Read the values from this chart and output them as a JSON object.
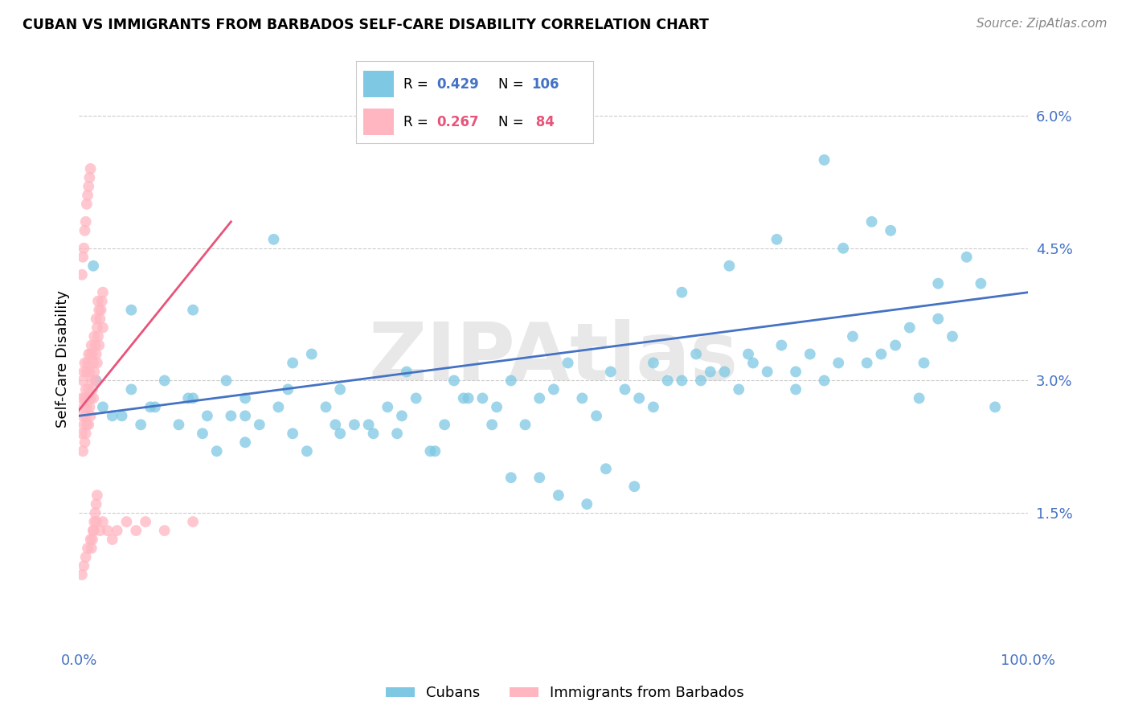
{
  "title": "CUBAN VS IMMIGRANTS FROM BARBADOS SELF-CARE DISABILITY CORRELATION CHART",
  "source": "Source: ZipAtlas.com",
  "ylabel": "Self-Care Disability",
  "xlim": [
    0.0,
    1.0
  ],
  "ylim": [
    0.0,
    0.065
  ],
  "color_cubans": "#7EC8E3",
  "color_barbados": "#FFB6C1",
  "color_cubans_line": "#4472C4",
  "color_barbados_line": "#E8547A",
  "color_text_blue": "#4472C4",
  "color_text_pink": "#E8547A",
  "watermark": "ZIPAtlas",
  "cubans_x": [
    0.018,
    0.045,
    0.055,
    0.075,
    0.09,
    0.105,
    0.115,
    0.13,
    0.145,
    0.16,
    0.175,
    0.19,
    0.21,
    0.225,
    0.24,
    0.26,
    0.275,
    0.29,
    0.31,
    0.325,
    0.34,
    0.355,
    0.37,
    0.385,
    0.395,
    0.41,
    0.425,
    0.44,
    0.455,
    0.47,
    0.485,
    0.5,
    0.515,
    0.53,
    0.545,
    0.56,
    0.575,
    0.59,
    0.605,
    0.62,
    0.635,
    0.65,
    0.665,
    0.68,
    0.695,
    0.71,
    0.725,
    0.74,
    0.755,
    0.77,
    0.785,
    0.8,
    0.815,
    0.83,
    0.845,
    0.86,
    0.875,
    0.89,
    0.905,
    0.92,
    0.035,
    0.065,
    0.12,
    0.155,
    0.205,
    0.245,
    0.305,
    0.345,
    0.405,
    0.455,
    0.505,
    0.555,
    0.605,
    0.655,
    0.705,
    0.755,
    0.805,
    0.855,
    0.905,
    0.025,
    0.08,
    0.135,
    0.175,
    0.225,
    0.275,
    0.335,
    0.375,
    0.435,
    0.485,
    0.535,
    0.585,
    0.635,
    0.685,
    0.735,
    0.785,
    0.835,
    0.885,
    0.935,
    0.965,
    0.95,
    0.015,
    0.055,
    0.12,
    0.175,
    0.22,
    0.27
  ],
  "cubans_y": [
    0.03,
    0.026,
    0.038,
    0.027,
    0.03,
    0.025,
    0.028,
    0.024,
    0.022,
    0.026,
    0.028,
    0.025,
    0.027,
    0.024,
    0.022,
    0.027,
    0.029,
    0.025,
    0.024,
    0.027,
    0.026,
    0.028,
    0.022,
    0.025,
    0.03,
    0.028,
    0.028,
    0.027,
    0.03,
    0.025,
    0.028,
    0.029,
    0.032,
    0.028,
    0.026,
    0.031,
    0.029,
    0.028,
    0.032,
    0.03,
    0.03,
    0.033,
    0.031,
    0.031,
    0.029,
    0.032,
    0.031,
    0.034,
    0.031,
    0.033,
    0.03,
    0.032,
    0.035,
    0.032,
    0.033,
    0.034,
    0.036,
    0.032,
    0.037,
    0.035,
    0.026,
    0.025,
    0.038,
    0.03,
    0.046,
    0.033,
    0.025,
    0.031,
    0.028,
    0.019,
    0.017,
    0.02,
    0.027,
    0.03,
    0.033,
    0.029,
    0.045,
    0.047,
    0.041,
    0.027,
    0.027,
    0.026,
    0.023,
    0.032,
    0.024,
    0.024,
    0.022,
    0.025,
    0.019,
    0.016,
    0.018,
    0.04,
    0.043,
    0.046,
    0.055,
    0.048,
    0.028,
    0.044,
    0.027,
    0.041,
    0.043,
    0.029,
    0.028,
    0.026,
    0.029,
    0.025
  ],
  "barbados_x": [
    0.003,
    0.003,
    0.004,
    0.004,
    0.004,
    0.005,
    0.005,
    0.005,
    0.006,
    0.006,
    0.006,
    0.007,
    0.007,
    0.007,
    0.008,
    0.008,
    0.008,
    0.009,
    0.009,
    0.01,
    0.01,
    0.01,
    0.011,
    0.011,
    0.012,
    0.012,
    0.012,
    0.013,
    0.013,
    0.014,
    0.014,
    0.015,
    0.015,
    0.016,
    0.016,
    0.017,
    0.017,
    0.018,
    0.018,
    0.019,
    0.019,
    0.02,
    0.02,
    0.021,
    0.021,
    0.022,
    0.023,
    0.024,
    0.025,
    0.025,
    0.003,
    0.004,
    0.005,
    0.006,
    0.007,
    0.008,
    0.009,
    0.01,
    0.011,
    0.012,
    0.013,
    0.014,
    0.015,
    0.016,
    0.017,
    0.018,
    0.019,
    0.003,
    0.005,
    0.007,
    0.009,
    0.012,
    0.015,
    0.018,
    0.022,
    0.025,
    0.03,
    0.035,
    0.04,
    0.05,
    0.06,
    0.07,
    0.09,
    0.12
  ],
  "barbados_y": [
    0.028,
    0.024,
    0.022,
    0.026,
    0.03,
    0.025,
    0.027,
    0.031,
    0.023,
    0.028,
    0.032,
    0.026,
    0.029,
    0.024,
    0.027,
    0.031,
    0.025,
    0.028,
    0.032,
    0.029,
    0.025,
    0.033,
    0.027,
    0.031,
    0.028,
    0.033,
    0.026,
    0.03,
    0.034,
    0.029,
    0.033,
    0.028,
    0.032,
    0.031,
    0.035,
    0.03,
    0.034,
    0.033,
    0.037,
    0.032,
    0.036,
    0.035,
    0.039,
    0.034,
    0.038,
    0.037,
    0.038,
    0.039,
    0.04,
    0.036,
    0.042,
    0.044,
    0.045,
    0.047,
    0.048,
    0.05,
    0.051,
    0.052,
    0.053,
    0.054,
    0.011,
    0.012,
    0.013,
    0.014,
    0.015,
    0.016,
    0.017,
    0.008,
    0.009,
    0.01,
    0.011,
    0.012,
    0.013,
    0.014,
    0.013,
    0.014,
    0.013,
    0.012,
    0.013,
    0.014,
    0.013,
    0.014,
    0.013,
    0.014
  ],
  "blue_line_x": [
    0.0,
    1.0
  ],
  "blue_line_y": [
    0.026,
    0.04
  ],
  "pink_line_x": [
    -0.005,
    0.16
  ],
  "pink_line_y": [
    0.026,
    0.048
  ]
}
